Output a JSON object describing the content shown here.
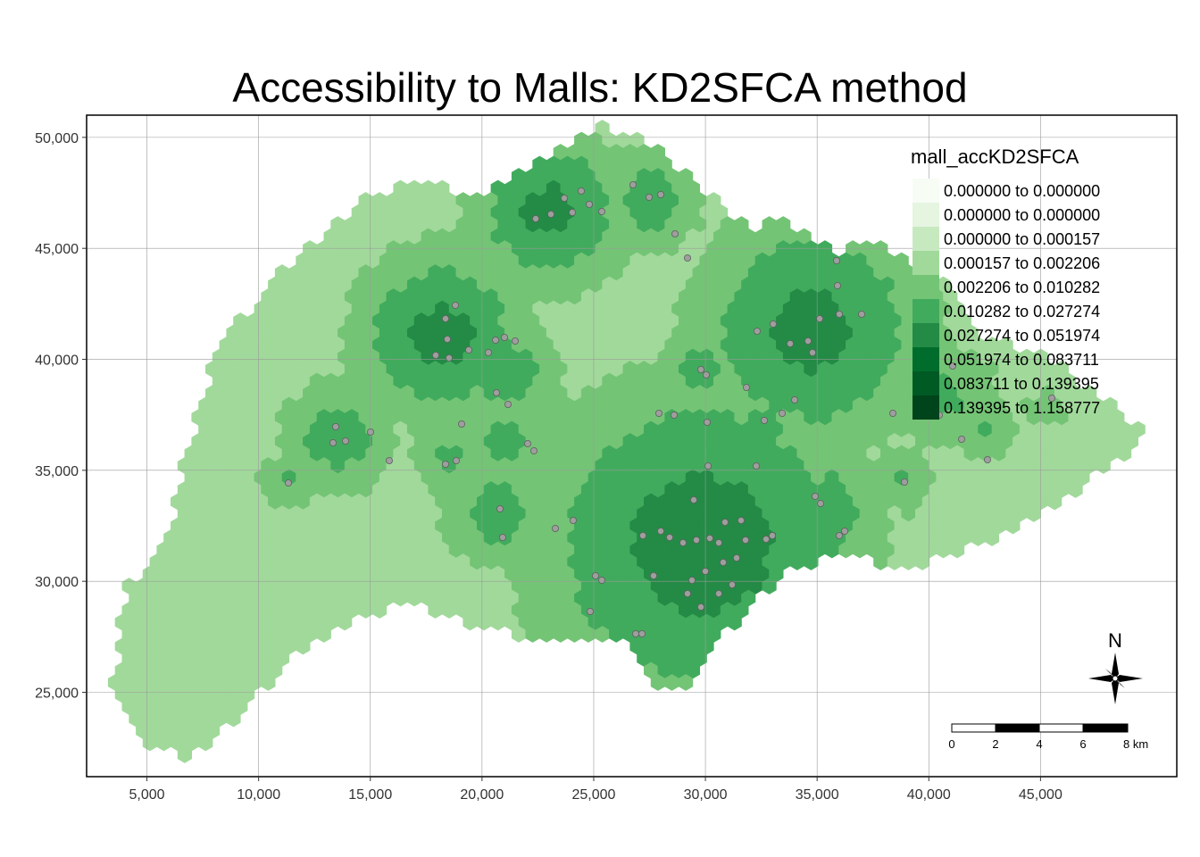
{
  "title": "Accessibility to Malls: KD2SFCA method",
  "map": {
    "x_ticks": [
      "5,000",
      "10,000",
      "15,000",
      "20,000",
      "25,000",
      "30,000",
      "35,000",
      "40,000",
      "45,000"
    ],
    "y_ticks": [
      "50,000",
      "45,000",
      "40,000",
      "35,000",
      "30,000",
      "25,000"
    ],
    "x_tick_values": [
      5000,
      10000,
      15000,
      20000,
      25000,
      30000,
      35000,
      40000,
      45000
    ],
    "y_tick_values": [
      50000,
      45000,
      40000,
      35000,
      30000,
      25000
    ],
    "x_range": [
      2300,
      51100
    ],
    "y_range": [
      21200,
      51000
    ],
    "grid": true
  },
  "legend": {
    "title": "mall_accKD2SFCA",
    "position": "top-right",
    "classes": [
      {
        "label": "0.000000 to 0.000000",
        "color": "#f7fcf5"
      },
      {
        "label": "0.000000 to 0.000000",
        "color": "#e5f5e0"
      },
      {
        "label": "0.000000 to 0.000157",
        "color": "#c7e9c0"
      },
      {
        "label": "0.000157 to 0.002206",
        "color": "#a1d99b"
      },
      {
        "label": "0.002206 to 0.010282",
        "color": "#74c476"
      },
      {
        "label": "0.010282 to 0.027274",
        "color": "#41ab5d"
      },
      {
        "label": "0.027274 to 0.051974",
        "color": "#238b45"
      },
      {
        "label": "0.051974 to 0.083711",
        "color": "#006d2c"
      },
      {
        "label": "0.083711 to 0.139395",
        "color": "#005a24"
      },
      {
        "label": "0.139395 to 1.158777",
        "color": "#00441b"
      }
    ]
  },
  "north_arrow": {
    "label": "N"
  },
  "scale_bar": {
    "labels": [
      "0",
      "2",
      "4",
      "6",
      "8 km"
    ]
  },
  "malls_color": "#9e9e9e"
}
